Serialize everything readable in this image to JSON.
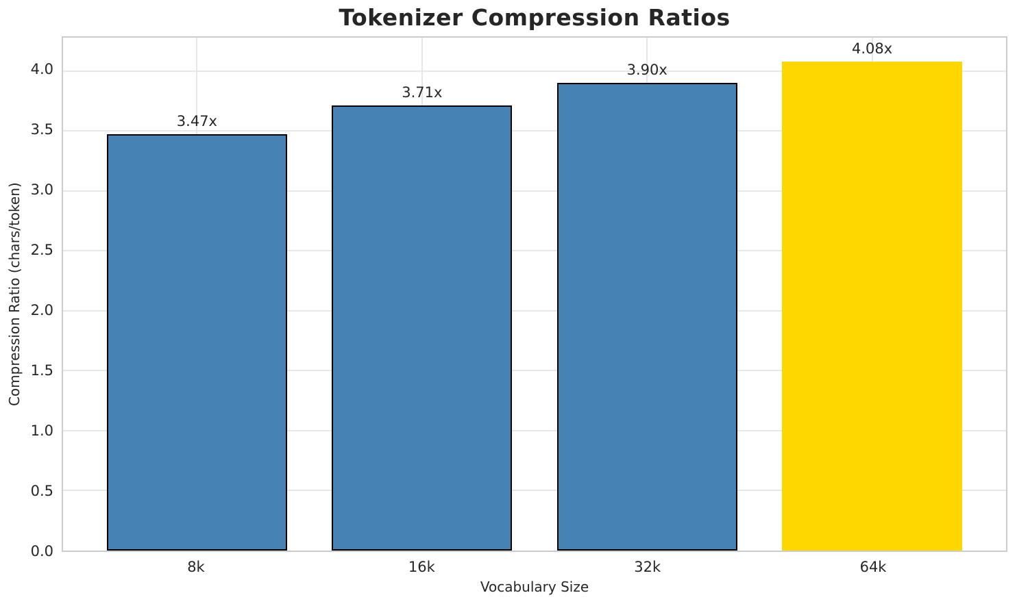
{
  "chart_data": {
    "type": "bar",
    "title": "Tokenizer Compression Ratios",
    "xlabel": "Vocabulary Size",
    "ylabel": "Compression Ratio (chars/token)",
    "categories": [
      "8k",
      "16k",
      "32k",
      "64k"
    ],
    "values": [
      3.47,
      3.71,
      3.9,
      4.08
    ],
    "bar_labels": [
      "3.47x",
      "3.71x",
      "3.90x",
      "4.08x"
    ],
    "bar_colors": [
      "#4682B4",
      "#4682B4",
      "#4682B4",
      "#FFD700"
    ],
    "bar_edge_colors": [
      "#000000",
      "#000000",
      "#000000",
      "none"
    ],
    "highlight_index": 3,
    "ylim": [
      0,
      4.278
    ],
    "yticks": [
      0.0,
      0.5,
      1.0,
      1.5,
      2.0,
      2.5,
      3.0,
      3.5,
      4.0
    ],
    "ytick_labels": [
      "0.0",
      "0.5",
      "1.0",
      "1.5",
      "2.0",
      "2.5",
      "3.0",
      "3.5",
      "4.0"
    ],
    "grid": true,
    "legend_position": "none",
    "colors": {
      "bar": "#4682B4",
      "highlight": "#FFD700",
      "bar_edge": "#000000",
      "grid": "#e7e7e7",
      "spine": "#cccccc",
      "text": "#262626",
      "background": "#ffffff"
    }
  }
}
